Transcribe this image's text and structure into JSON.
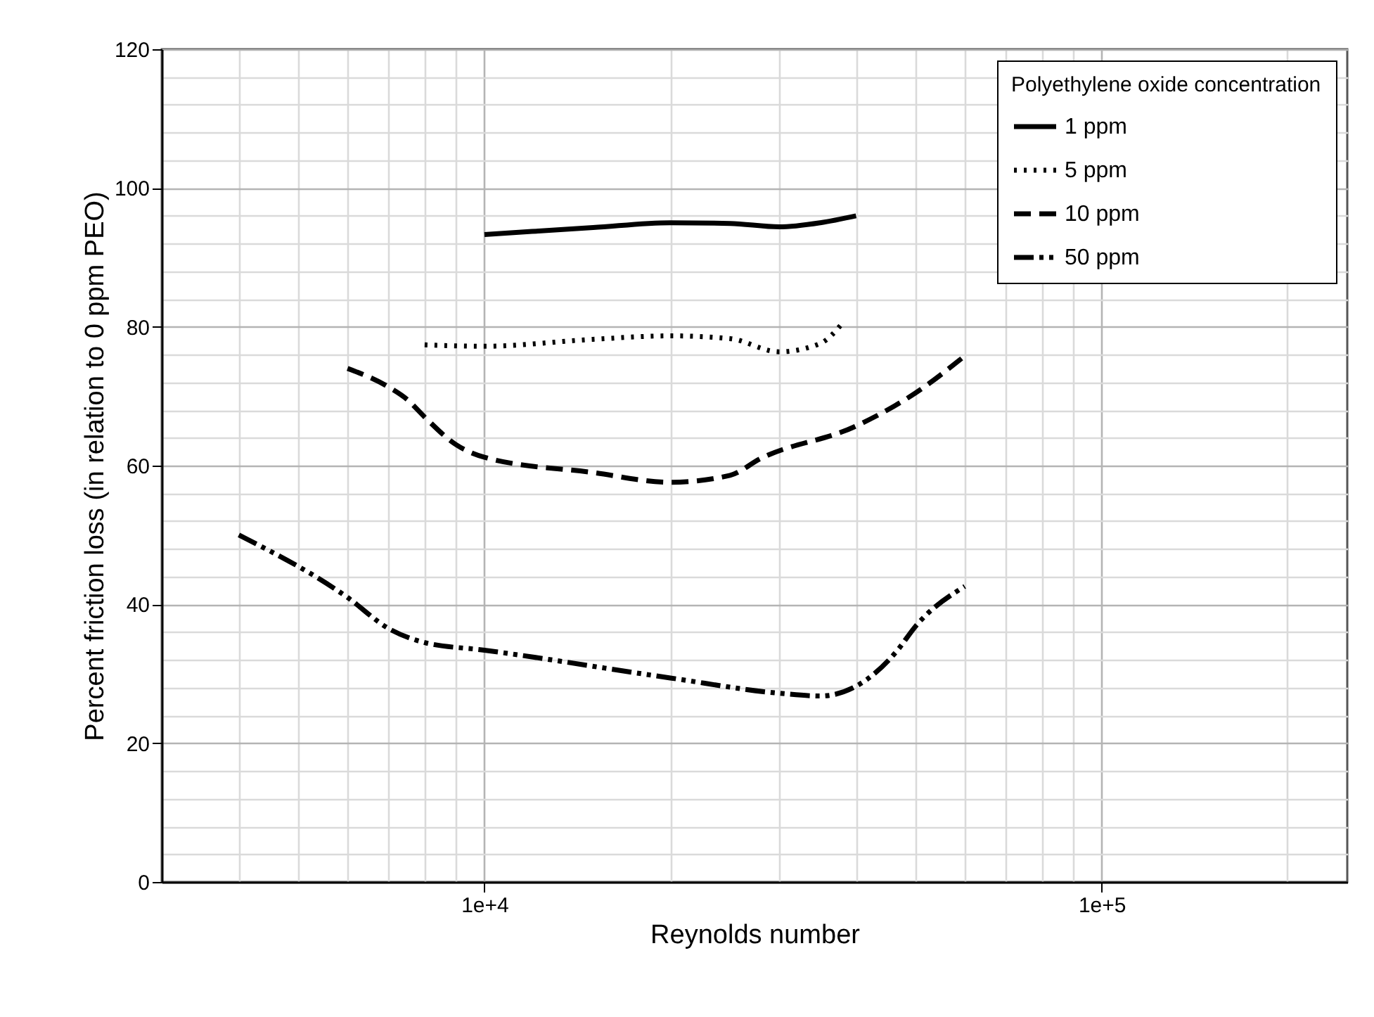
{
  "chart_data": {
    "type": "line",
    "xlabel": "Reynolds number",
    "ylabel": "Percent friction loss (in relation to 0 ppm PEO)",
    "legend_title": "Polyethylene oxide concentration",
    "legend": "top right",
    "log": "x",
    "grid": true,
    "marker": "none",
    "xlim": [
      3000,
      250000
    ],
    "xticks": [
      {
        "value": 10000,
        "label": "1e+4"
      },
      {
        "value": 100000,
        "label": "1e+5"
      }
    ],
    "ylim": [
      0,
      120
    ],
    "yticks": [
      0,
      20,
      40,
      60,
      80,
      100,
      120
    ],
    "series": [
      {
        "name": "1 ppm",
        "color": "#000000",
        "line_style": "solid",
        "x": [
          10000,
          15000,
          20000,
          25000,
          30000,
          35000,
          40000
        ],
        "values": [
          93.3,
          94.3,
          95,
          94.9,
          94.4,
          95,
          96
        ]
      },
      {
        "name": "5 ppm",
        "color": "#000000",
        "line_style": "dotted",
        "x": [
          8000,
          10000,
          15000,
          20000,
          25000,
          30000,
          35000,
          38000
        ],
        "values": [
          77.4,
          77.2,
          78.2,
          78.7,
          78.3,
          76.4,
          77.6,
          80.5
        ]
      },
      {
        "name": "10 ppm",
        "color": "#000000",
        "line_style": "dashed",
        "x": [
          6000,
          7000,
          7500,
          8000,
          9000,
          10000,
          15000,
          20000,
          25000,
          28000,
          40000,
          50000,
          60000
        ],
        "values": [
          74,
          71.3,
          69.5,
          67,
          63,
          61.2,
          59,
          57.6,
          58.6,
          61,
          65.7,
          70.5,
          75.8
        ]
      },
      {
        "name": "50 ppm",
        "color": "#000000",
        "line_style": "dashdotdot",
        "x": [
          4000,
          6000,
          7000,
          8000,
          10000,
          20000,
          30000,
          35000,
          40000,
          46500,
          50000,
          60000
        ],
        "values": [
          50,
          41,
          36.5,
          34.5,
          33.4,
          29.4,
          27.2,
          26.8,
          28.2,
          33.2,
          36.9,
          42.6
        ]
      }
    ]
  }
}
